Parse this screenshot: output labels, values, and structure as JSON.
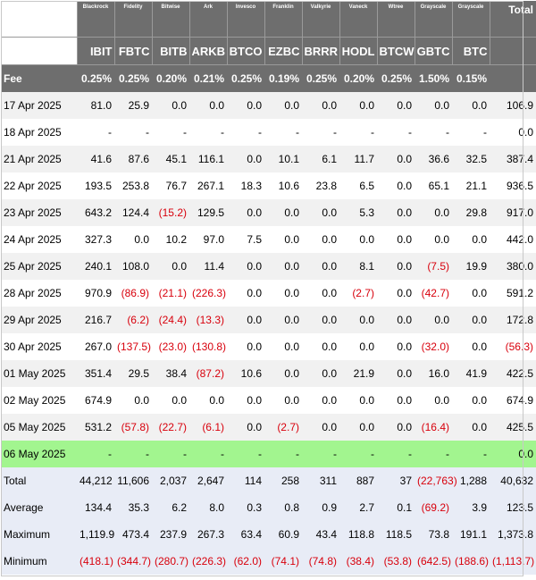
{
  "header": {
    "total_label": "Total",
    "fee_label": "Fee",
    "columns": [
      {
        "issuer": "Blackrock",
        "ticker": "IBIT",
        "fee": "0.25%"
      },
      {
        "issuer": "Fidelity",
        "ticker": "FBTC",
        "fee": "0.25%"
      },
      {
        "issuer": "Bitwise",
        "ticker": "BITB",
        "fee": "0.20%"
      },
      {
        "issuer": "Ark",
        "ticker": "ARKB",
        "fee": "0.21%"
      },
      {
        "issuer": "Invesco",
        "ticker": "BTCO",
        "fee": "0.25%"
      },
      {
        "issuer": "Franklin",
        "ticker": "EZBC",
        "fee": "0.19%"
      },
      {
        "issuer": "Valkyrie",
        "ticker": "BRRR",
        "fee": "0.25%"
      },
      {
        "issuer": "Vaneck",
        "ticker": "HODL",
        "fee": "0.20%"
      },
      {
        "issuer": "Wtree",
        "ticker": "BTCW",
        "fee": "0.25%"
      },
      {
        "issuer": "Grayscale",
        "ticker": "GBTC",
        "fee": "1.50%"
      },
      {
        "issuer": "Grayscale",
        "ticker": "BTC",
        "fee": "0.15%"
      }
    ]
  },
  "rows": [
    {
      "date": "17 Apr 2025",
      "values": [
        "81.0",
        "25.9",
        "0.0",
        "0.0",
        "0.0",
        "0.0",
        "0.0",
        "0.0",
        "0.0",
        "0.0",
        "0.0"
      ],
      "total": "106.9",
      "highlight": false
    },
    {
      "date": "18 Apr 2025",
      "values": [
        "-",
        "-",
        "-",
        "-",
        "-",
        "-",
        "-",
        "-",
        "-",
        "-",
        "-"
      ],
      "total": "0.0",
      "highlight": false
    },
    {
      "date": "21 Apr 2025",
      "values": [
        "41.6",
        "87.6",
        "45.1",
        "116.1",
        "0.0",
        "10.1",
        "6.1",
        "11.7",
        "0.0",
        "36.6",
        "32.5"
      ],
      "total": "387.4",
      "highlight": false
    },
    {
      "date": "22 Apr 2025",
      "values": [
        "193.5",
        "253.8",
        "76.7",
        "267.1",
        "18.3",
        "10.6",
        "23.8",
        "6.5",
        "0.0",
        "65.1",
        "21.1"
      ],
      "total": "936.5",
      "highlight": false
    },
    {
      "date": "23 Apr 2025",
      "values": [
        "643.2",
        "124.4",
        "(15.2)",
        "129.5",
        "0.0",
        "0.0",
        "0.0",
        "5.3",
        "0.0",
        "0.0",
        "29.8"
      ],
      "total": "917.0",
      "highlight": false
    },
    {
      "date": "24 Apr 2025",
      "values": [
        "327.3",
        "0.0",
        "10.2",
        "97.0",
        "7.5",
        "0.0",
        "0.0",
        "0.0",
        "0.0",
        "0.0",
        "0.0"
      ],
      "total": "442.0",
      "highlight": false
    },
    {
      "date": "25 Apr 2025",
      "values": [
        "240.1",
        "108.0",
        "0.0",
        "11.4",
        "0.0",
        "0.0",
        "0.0",
        "8.1",
        "0.0",
        "(7.5)",
        "19.9"
      ],
      "total": "380.0",
      "highlight": false
    },
    {
      "date": "28 Apr 2025",
      "values": [
        "970.9",
        "(86.9)",
        "(21.1)",
        "(226.3)",
        "0.0",
        "0.0",
        "0.0",
        "(2.7)",
        "0.0",
        "(42.7)",
        "0.0"
      ],
      "total": "591.2",
      "highlight": false
    },
    {
      "date": "29 Apr 2025",
      "values": [
        "216.7",
        "(6.2)",
        "(24.4)",
        "(13.3)",
        "0.0",
        "0.0",
        "0.0",
        "0.0",
        "0.0",
        "0.0",
        "0.0"
      ],
      "total": "172.8",
      "highlight": false
    },
    {
      "date": "30 Apr 2025",
      "values": [
        "267.0",
        "(137.5)",
        "(23.0)",
        "(130.8)",
        "0.0",
        "0.0",
        "0.0",
        "0.0",
        "0.0",
        "(32.0)",
        "0.0"
      ],
      "total": "(56.3)",
      "highlight": false
    },
    {
      "date": "01 May 2025",
      "values": [
        "351.4",
        "29.5",
        "38.4",
        "(87.2)",
        "10.6",
        "0.0",
        "0.0",
        "21.9",
        "0.0",
        "16.0",
        "41.9"
      ],
      "total": "422.5",
      "highlight": false
    },
    {
      "date": "02 May 2025",
      "values": [
        "674.9",
        "0.0",
        "0.0",
        "0.0",
        "0.0",
        "0.0",
        "0.0",
        "0.0",
        "0.0",
        "0.0",
        "0.0"
      ],
      "total": "674.9",
      "highlight": false
    },
    {
      "date": "05 May 2025",
      "values": [
        "531.2",
        "(57.8)",
        "(22.7)",
        "(6.1)",
        "0.0",
        "(2.7)",
        "0.0",
        "0.0",
        "0.0",
        "(16.4)",
        "0.0"
      ],
      "total": "425.5",
      "highlight": false
    },
    {
      "date": "06 May 2025",
      "values": [
        "-",
        "-",
        "-",
        "-",
        "-",
        "-",
        "-",
        "-",
        "-",
        "-",
        "-"
      ],
      "total": "0.0",
      "highlight": true
    }
  ],
  "stats": [
    {
      "label": "Total",
      "values": [
        "44,212",
        "11,606",
        "2,037",
        "2,647",
        "114",
        "258",
        "311",
        "887",
        "37",
        "(22,763)",
        "1,288"
      ],
      "total": "40,632"
    },
    {
      "label": "Average",
      "values": [
        "134.4",
        "35.3",
        "6.2",
        "8.0",
        "0.3",
        "0.8",
        "0.9",
        "2.7",
        "0.1",
        "(69.2)",
        "3.9"
      ],
      "total": "123.5"
    },
    {
      "label": "Maximum",
      "values": [
        "1,119.9",
        "473.4",
        "237.9",
        "267.3",
        "63.4",
        "60.9",
        "43.4",
        "118.8",
        "118.5",
        "73.8",
        "191.1"
      ],
      "total": "1,373.8"
    },
    {
      "label": "Minimum",
      "values": [
        "(418.1)",
        "(344.7)",
        "(280.7)",
        "(226.3)",
        "(62.0)",
        "(74.1)",
        "(74.8)",
        "(38.4)",
        "(53.8)",
        "(642.5)",
        "(188.6)"
      ],
      "total": "(1,113.7)"
    }
  ],
  "colors": {
    "header_bg": "#6e6e6e",
    "row_alt": "#f1f1f1",
    "highlight_row": "#a2f58f",
    "stat_bg": "#e8ecf6",
    "negative": "#d8000c"
  }
}
